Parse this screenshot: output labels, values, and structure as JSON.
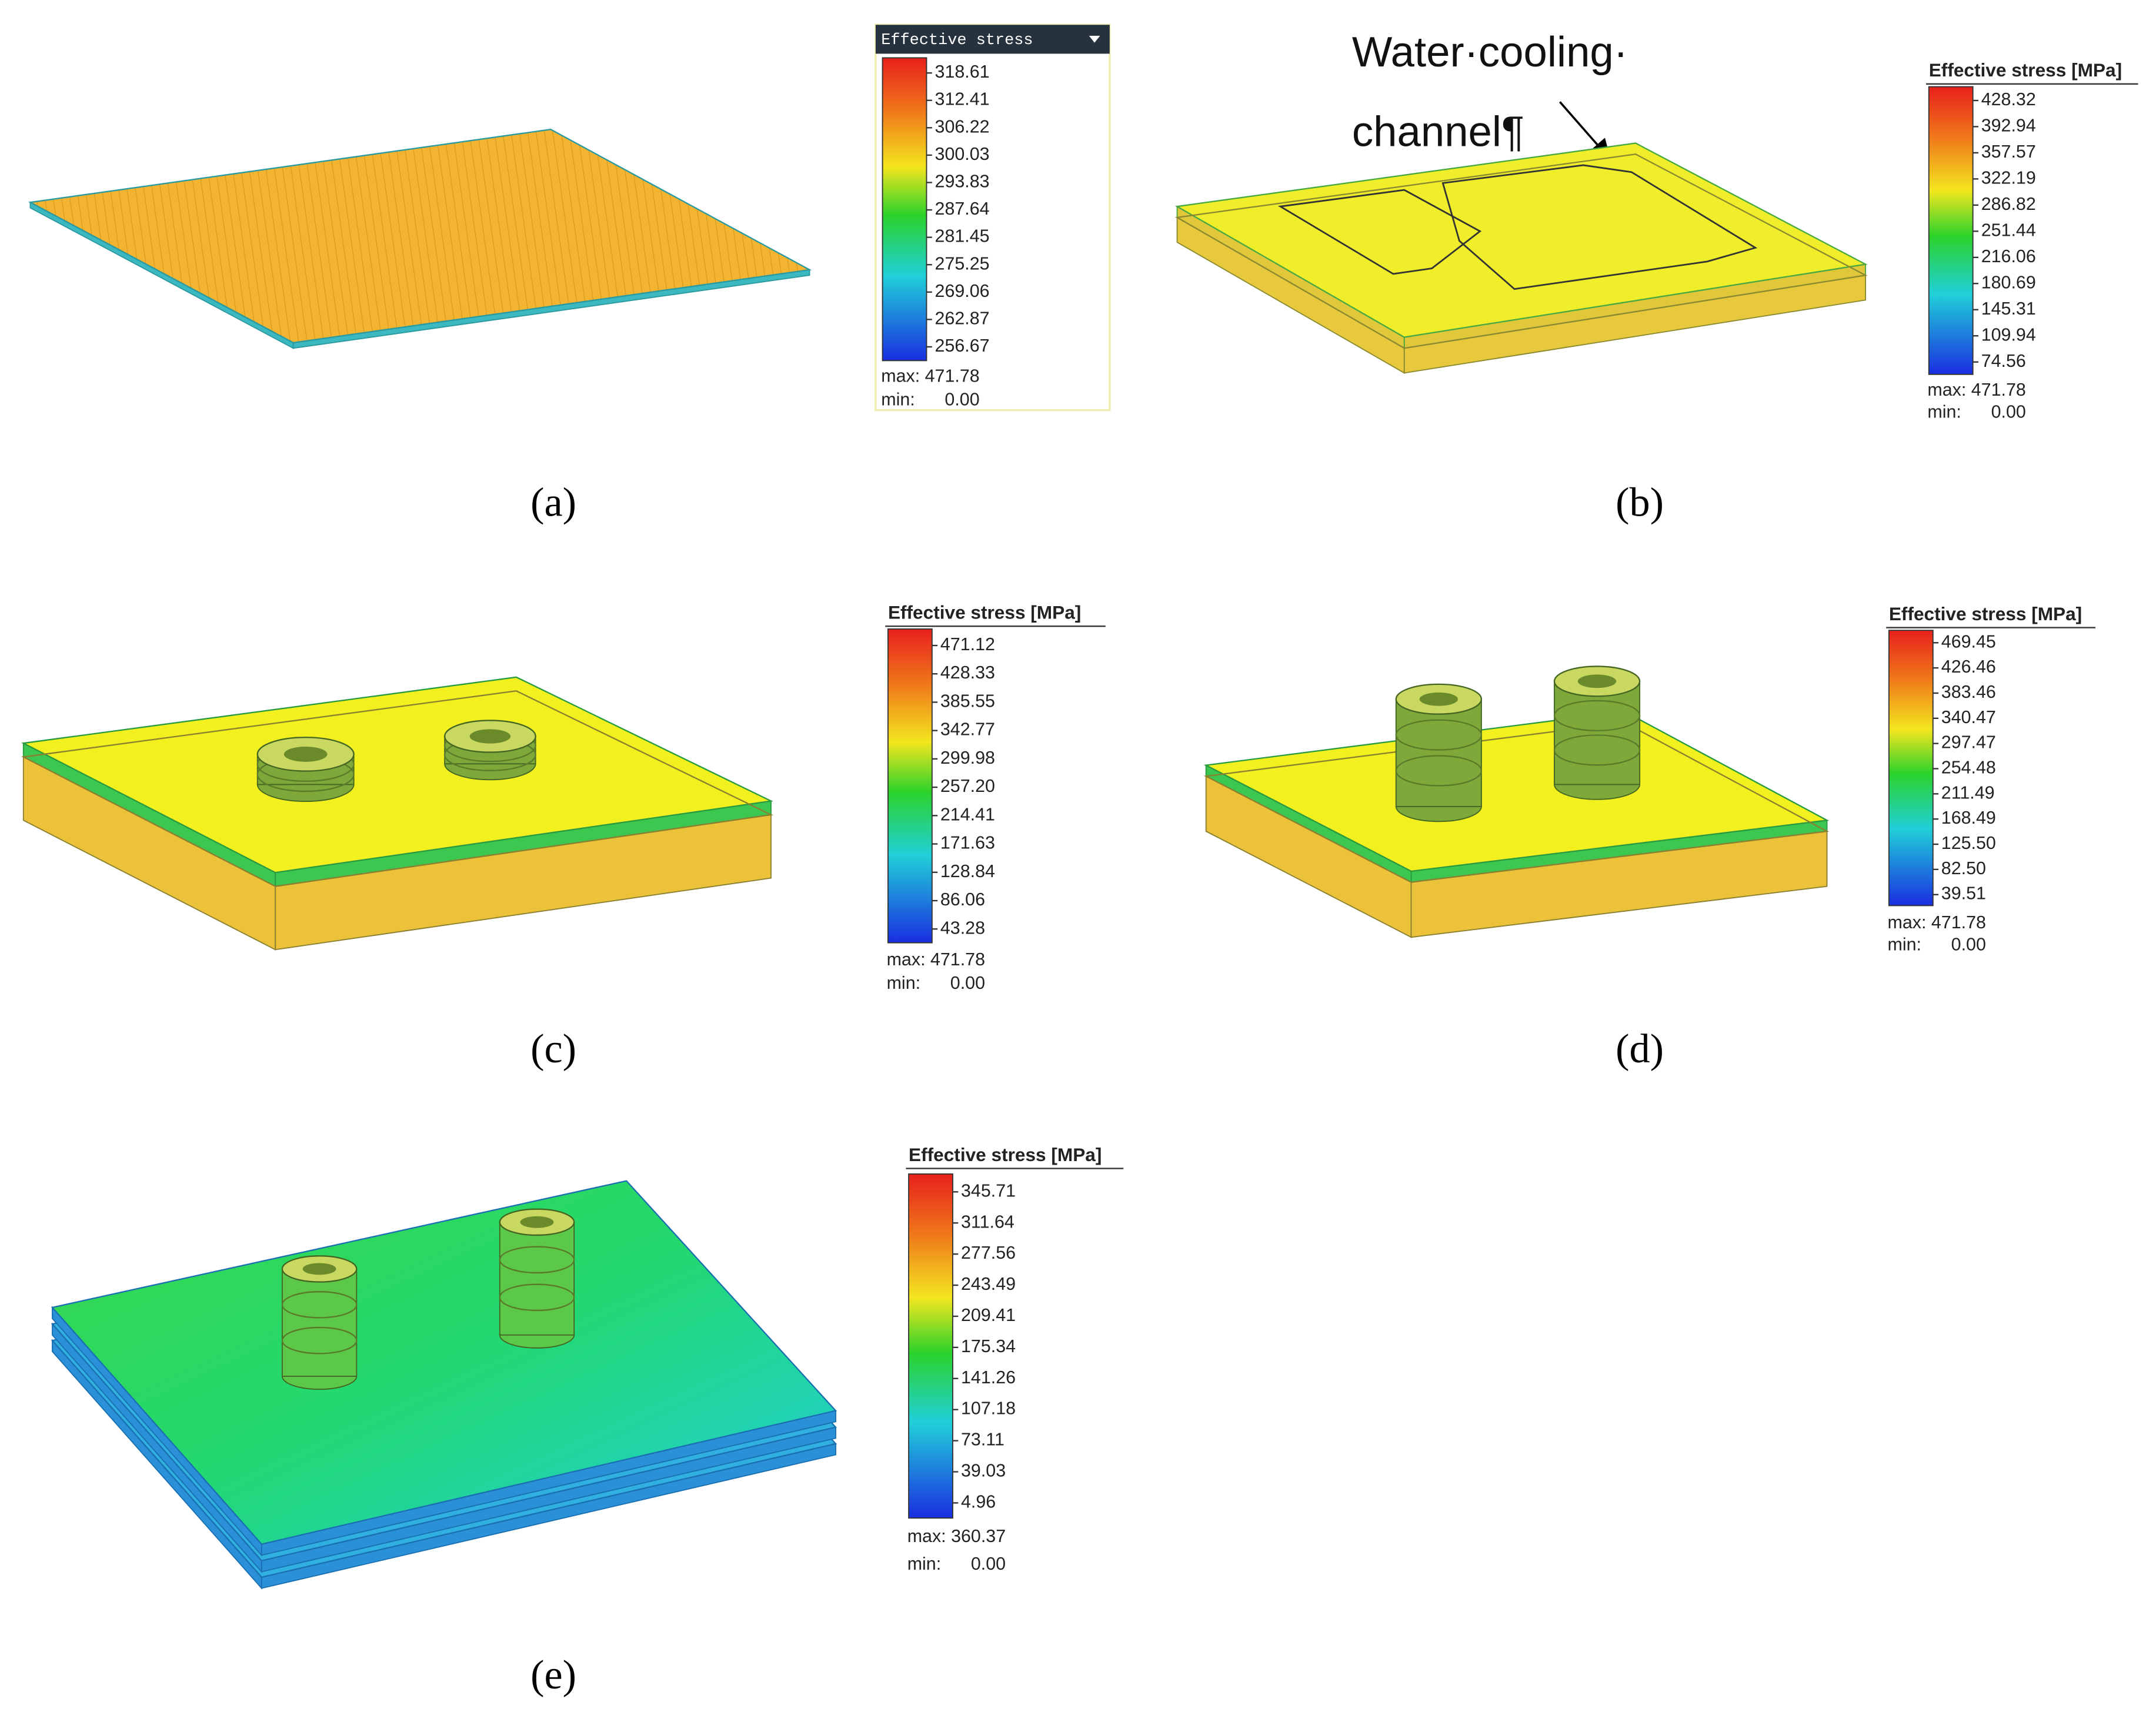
{
  "panels": [
    {
      "label": "(a)",
      "legend": {
        "title": "Effective stress",
        "ticks": [
          "318.61",
          "312.41",
          "306.22",
          "300.03",
          "293.83",
          "287.64",
          "281.45",
          "275.25",
          "269.06",
          "262.87",
          "256.67"
        ],
        "max": "max: 471.78",
        "min": "min:      0.00"
      }
    },
    {
      "label": "(b)",
      "legend": {
        "title": "Effective stress [MPa]",
        "ticks": [
          "428.32",
          "392.94",
          "357.57",
          "322.19",
          "286.82",
          "251.44",
          "216.06",
          "180.69",
          "145.31",
          "109.94",
          "74.56"
        ],
        "max": "max: 471.78",
        "min": "min:      0.00"
      }
    },
    {
      "label": "(c)",
      "legend": {
        "title": "Effective stress [MPa]",
        "ticks": [
          "471.12",
          "428.33",
          "385.55",
          "342.77",
          "299.98",
          "257.20",
          "214.41",
          "171.63",
          "128.84",
          "86.06",
          "43.28"
        ],
        "max": "max: 471.78",
        "min": "min:      0.00"
      }
    },
    {
      "label": "(d)",
      "legend": {
        "title": "Effective stress [MPa]",
        "ticks": [
          "469.45",
          "426.46",
          "383.46",
          "340.47",
          "297.47",
          "254.48",
          "211.49",
          "168.49",
          "125.50",
          "82.50",
          "39.51"
        ],
        "max": "max: 471.78",
        "min": "min:      0.00"
      }
    },
    {
      "label": "(e)",
      "legend": {
        "title": "Effective stress [MPa]",
        "ticks": [
          "345.71",
          "311.64",
          "277.56",
          "243.49",
          "209.41",
          "175.34",
          "141.26",
          "107.18",
          "73.11",
          "39.03",
          "4.96"
        ],
        "max": "max: 360.37",
        "min": "min:      0.00"
      }
    }
  ],
  "annotation": {
    "lines": [
      "Water·cooling·",
      "channel¶"
    ]
  }
}
